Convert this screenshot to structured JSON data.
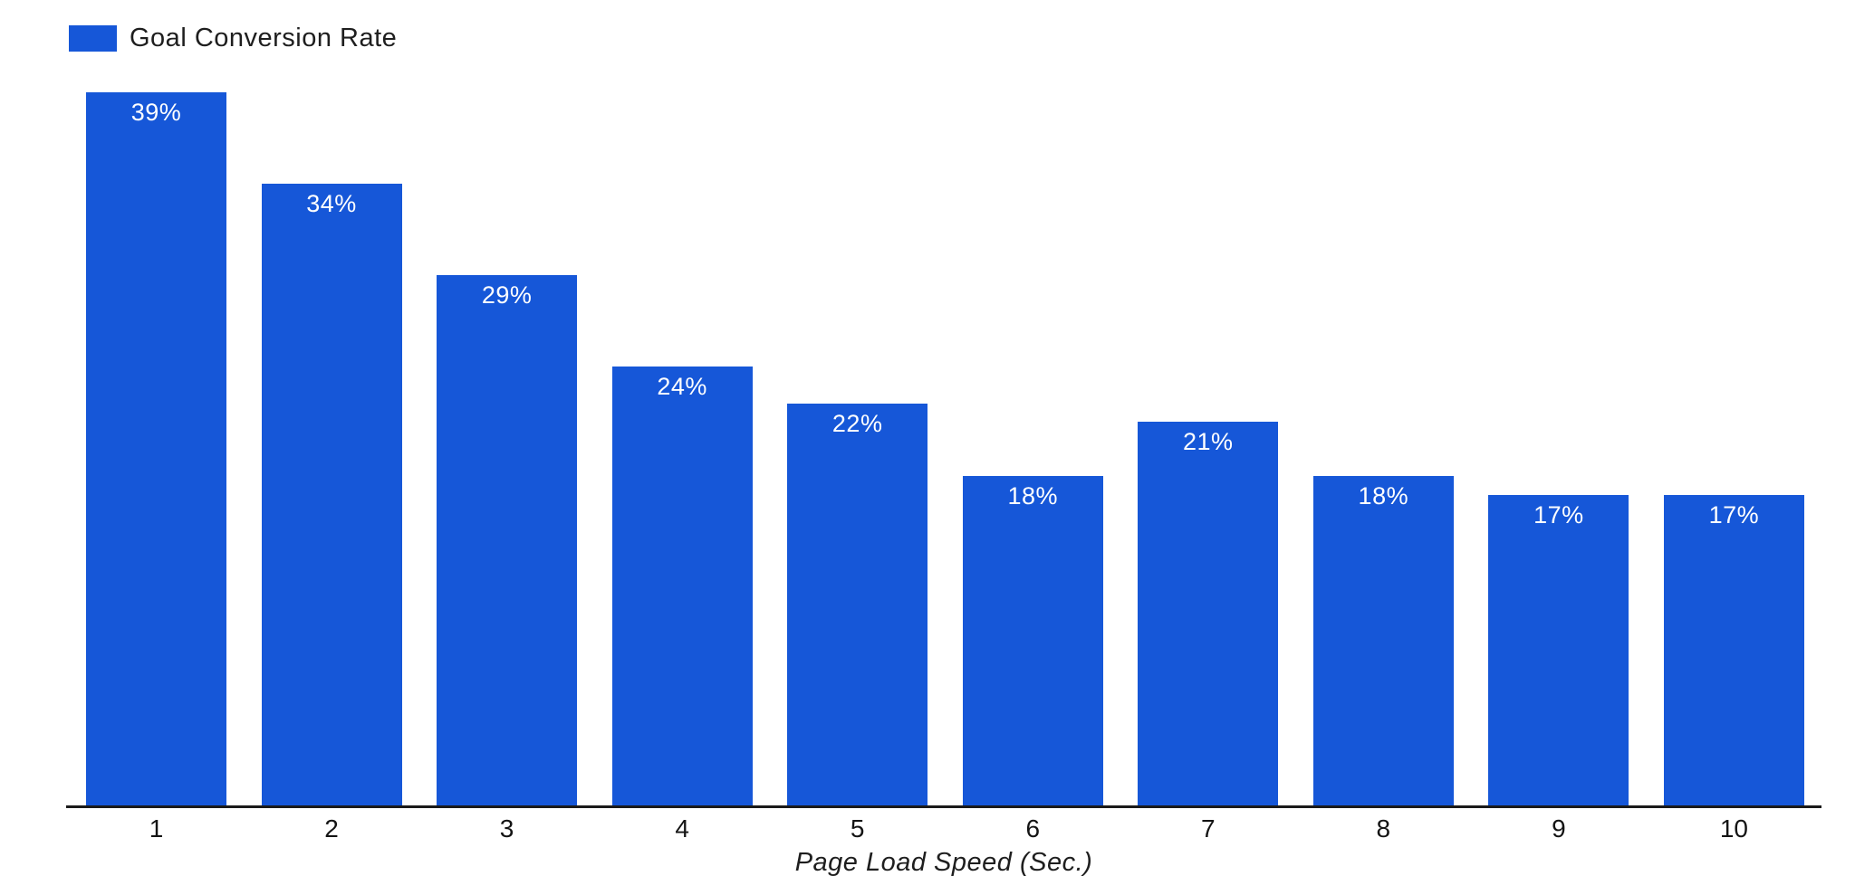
{
  "legend": {
    "label": "Goal Conversion Rate",
    "swatch_color": "#1657D8"
  },
  "chart_data": {
    "type": "bar",
    "title": "",
    "categories": [
      "1",
      "2",
      "3",
      "4",
      "5",
      "6",
      "7",
      "8",
      "9",
      "10"
    ],
    "values": [
      39,
      34,
      29,
      24,
      22,
      18,
      21,
      18,
      17,
      17
    ],
    "value_labels": [
      "39%",
      "34%",
      "29%",
      "24%",
      "22%",
      "18%",
      "21%",
      "18%",
      "17%",
      "17%"
    ],
    "series_name": "Goal Conversion Rate",
    "xlabel": "Page Load Speed (Sec.)",
    "ylabel": "",
    "ylim": [
      0,
      40
    ],
    "grid": false,
    "y_axis_visible": false,
    "legend_position": "top-left",
    "bar_color": "#1657D8",
    "value_label_color": "#FFFFFF",
    "value_label_position": "inside-top"
  },
  "colors": {
    "bar": "#1657D8",
    "text_dark": "#1e1e1e",
    "axis_line": "#1a1a1a",
    "background": "#FFFFFF"
  }
}
